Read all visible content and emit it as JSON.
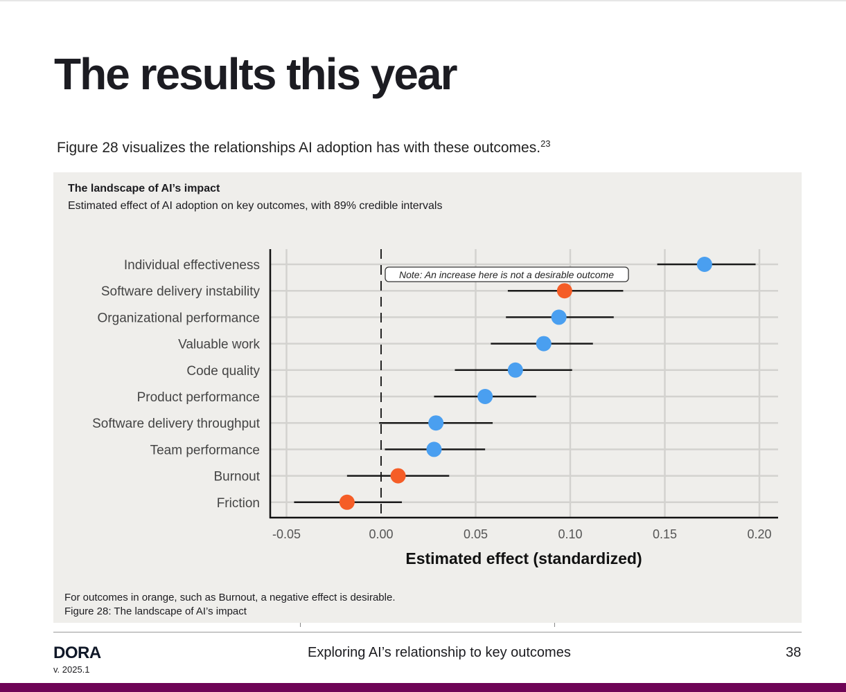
{
  "page": {
    "title": "The results this year",
    "intro": "Figure 28 visualizes the relationships AI adoption has with these outcomes.",
    "intro_footnote": "23",
    "footnote_line1": "For outcomes in orange, such as Burnout, a negative effect is desirable.",
    "footnote_line2": "Figure 28: The landscape of AI’s impact",
    "logo": "DORA",
    "version": "v. 2025.1",
    "section": "Exploring AI’s relationship to key outcomes",
    "page_number": "38"
  },
  "colors": {
    "positive": "#4a9ff0",
    "negative": "#f55d27",
    "panel": "#efeeeb",
    "footer_bar": "#6e0456"
  },
  "chart_data": {
    "type": "scatter",
    "title": "The landscape of AI’s impact",
    "subtitle": "Estimated effect of AI adoption on key outcomes, with 89% credible intervals",
    "xlabel": "Estimated effect (standardized)",
    "xlim": [
      -0.06,
      0.21
    ],
    "xticks": [
      -0.05,
      0.0,
      0.05,
      0.1,
      0.15,
      0.2
    ],
    "xtick_labels": [
      "-0.05",
      "0.00",
      "0.05",
      "0.10",
      "0.15",
      "0.20"
    ],
    "grid": true,
    "annotation": "Note: An increase here is not a desirable outcome",
    "points": [
      {
        "label": "Individual effectiveness",
        "estimate": 0.171,
        "low": 0.146,
        "high": 0.198,
        "undesirable_increase": false
      },
      {
        "label": "Software delivery instability",
        "estimate": 0.097,
        "low": 0.067,
        "high": 0.128,
        "undesirable_increase": true
      },
      {
        "label": "Organizational performance",
        "estimate": 0.094,
        "low": 0.066,
        "high": 0.123,
        "undesirable_increase": false
      },
      {
        "label": "Valuable work",
        "estimate": 0.086,
        "low": 0.058,
        "high": 0.112,
        "undesirable_increase": false
      },
      {
        "label": "Code quality",
        "estimate": 0.071,
        "low": 0.039,
        "high": 0.101,
        "undesirable_increase": false
      },
      {
        "label": "Product performance",
        "estimate": 0.055,
        "low": 0.028,
        "high": 0.082,
        "undesirable_increase": false
      },
      {
        "label": "Software delivery throughput",
        "estimate": 0.029,
        "low": -0.001,
        "high": 0.059,
        "undesirable_increase": false
      },
      {
        "label": "Team performance",
        "estimate": 0.028,
        "low": 0.002,
        "high": 0.055,
        "undesirable_increase": false
      },
      {
        "label": "Burnout",
        "estimate": 0.009,
        "low": -0.018,
        "high": 0.036,
        "undesirable_increase": true
      },
      {
        "label": "Friction",
        "estimate": -0.018,
        "low": -0.046,
        "high": 0.011,
        "undesirable_increase": true
      }
    ]
  }
}
